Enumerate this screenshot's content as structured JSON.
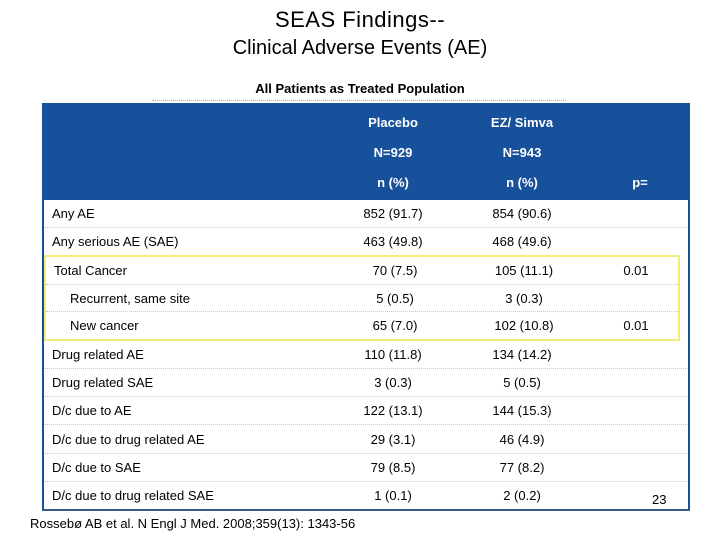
{
  "slide": {
    "title": "SEAS Findings--",
    "subtitle": "Clinical Adverse Events (AE)",
    "table_caption": "All Patients as Treated Population",
    "page_number": "23",
    "citation": "Rossebø AB et al. N Engl J Med. 2008;359(13): 1343-56"
  },
  "colors": {
    "header_bg": "#17509b",
    "table_border": "#17509b",
    "highlight_border": "#f0ee79"
  },
  "table": {
    "header": {
      "group1": "Placebo",
      "group2": "EZ/ Simva",
      "n1": "N=929",
      "n2": "N=943",
      "unit1": "n (%)",
      "unit2": "n (%)",
      "p": "p="
    },
    "rows": [
      {
        "label": "Any AE",
        "placebo": "852 (91.7)",
        "ez_simva": "854 (90.6)",
        "p": ""
      },
      {
        "label": "Any serious AE (SAE)",
        "placebo": "463 (49.8)",
        "ez_simva": "468 (49.6)",
        "p": ""
      },
      {
        "label": "Total Cancer",
        "placebo": "70 (7.5)",
        "ez_simva": "105 (11.1)",
        "p": "0.01",
        "highlight": true
      },
      {
        "label": "Recurrent, same site",
        "placebo": "5 (0.5)",
        "ez_simva": "3 (0.3)",
        "p": "",
        "highlight": true,
        "indent": true
      },
      {
        "label": "New cancer",
        "placebo": "65 (7.0)",
        "ez_simva": "102 (10.8)",
        "p": "0.01",
        "highlight": true,
        "indent": true
      },
      {
        "label": "Drug related AE",
        "placebo": "110 (11.8)",
        "ez_simva": "134 (14.2)",
        "p": ""
      },
      {
        "label": "Drug related SAE",
        "placebo": "3 (0.3)",
        "ez_simva": "5 (0.5)",
        "p": ""
      },
      {
        "label": "D/c due to AE",
        "placebo": "122 (13.1)",
        "ez_simva": "144 (15.3)",
        "p": ""
      },
      {
        "label": "D/c due to drug related AE",
        "placebo": "29 (3.1)",
        "ez_simva": "46 (4.9)",
        "p": ""
      },
      {
        "label": "D/c due to SAE",
        "placebo": "79 (8.5)",
        "ez_simva": "77 (8.2)",
        "p": ""
      },
      {
        "label": "D/c due to drug related SAE",
        "placebo": "1 (0.1)",
        "ez_simva": "2 (0.2)",
        "p": ""
      }
    ]
  }
}
